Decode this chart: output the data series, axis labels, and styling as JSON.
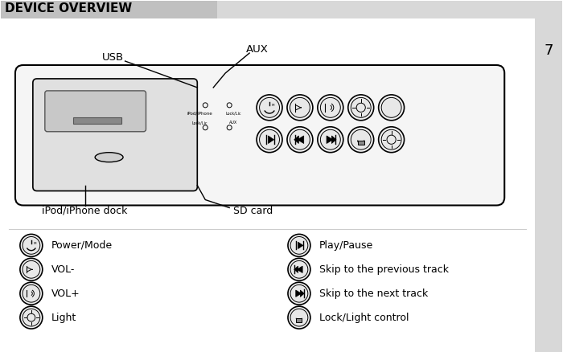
{
  "title": "DEVICE OVERVIEW",
  "page_number": "7",
  "bg_color": "#ffffff",
  "header_bg": "#c0c0c0",
  "header_bg2": "#d8d8d8",
  "labels_top": [
    "USB",
    "AUX"
  ],
  "labels_bottom": [
    "iPod/iPhone dock",
    "SD card"
  ],
  "left_items": [
    {
      "icon": "power",
      "text": "Power/Mode"
    },
    {
      "icon": "vol_minus",
      "text": "VOL-"
    },
    {
      "icon": "vol_plus",
      "text": "VOL+"
    },
    {
      "icon": "light",
      "text": "Light"
    }
  ],
  "right_items": [
    {
      "icon": "play",
      "text": "Play/Pause"
    },
    {
      "icon": "prev",
      "text": "Skip to the previous track"
    },
    {
      "icon": "next",
      "text": "Skip to the next track"
    },
    {
      "icon": "lock",
      "text": "Lock/Light control"
    }
  ]
}
